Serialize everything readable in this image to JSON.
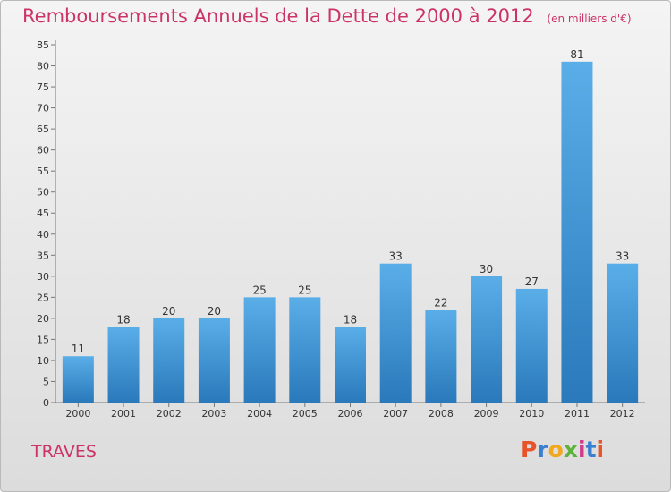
{
  "header": {
    "title": "Remboursements Annuels de la Dette de 2000 à 2012",
    "unit": "(en milliers d'€)"
  },
  "footer": {
    "town": "TRAVES",
    "logo": "Proxiti"
  },
  "colors": {
    "title": "#cc3366",
    "bar_top": "#5aaee8",
    "bar_bottom": "#2a79bb"
  },
  "chart_data": {
    "type": "bar",
    "title": "Remboursements Annuels de la Dette de 2000 à 2012",
    "ylabel": "",
    "xlabel": "",
    "categories": [
      "2000",
      "2001",
      "2002",
      "2003",
      "2004",
      "2005",
      "2006",
      "2007",
      "2008",
      "2009",
      "2010",
      "2011",
      "2012"
    ],
    "values": [
      11,
      18,
      20,
      20,
      25,
      25,
      18,
      33,
      22,
      30,
      27,
      81,
      33
    ],
    "ylim": [
      0,
      85
    ],
    "yticks": [
      0,
      5,
      10,
      15,
      20,
      25,
      30,
      35,
      40,
      45,
      50,
      55,
      60,
      65,
      70,
      75,
      80,
      85
    ],
    "grid": false,
    "legend": "none"
  }
}
